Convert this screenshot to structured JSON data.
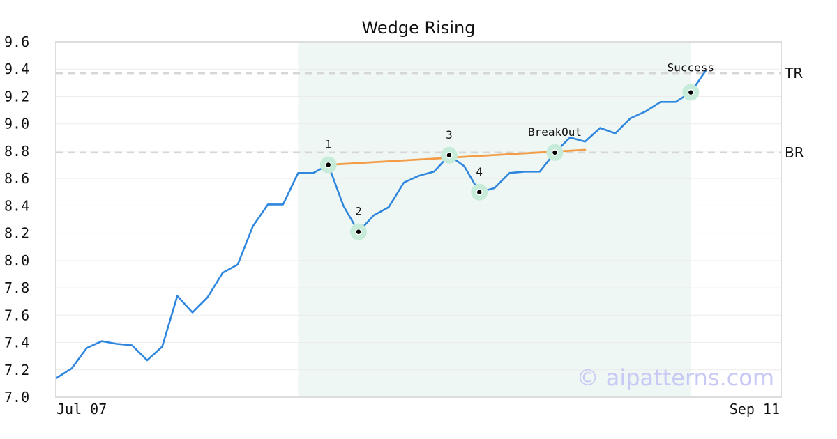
{
  "chart_data": {
    "type": "line",
    "title": "Wedge Rising",
    "xlabel": "",
    "ylabel": "",
    "x_tick_labels": [
      "Jul 07",
      "Sep 11"
    ],
    "y_ticks": [
      "7.0",
      "7.2",
      "7.4",
      "7.6",
      "7.8",
      "8.0",
      "8.2",
      "8.4",
      "8.6",
      "8.8",
      "9.0",
      "9.2",
      "9.4",
      "9.6"
    ],
    "ylim": [
      7.0,
      9.6
    ],
    "grid": true,
    "series": [
      {
        "color": "#2e86de",
        "values": [
          7.14,
          7.21,
          7.36,
          7.41,
          7.39,
          7.38,
          7.27,
          7.37,
          7.74,
          7.62,
          7.73,
          7.91,
          7.97,
          8.25,
          8.41,
          8.41,
          8.64,
          8.64,
          8.7,
          8.4,
          8.21,
          8.33,
          8.39,
          8.57,
          8.62,
          8.65,
          8.77,
          8.69,
          8.5,
          8.53,
          8.64,
          8.65,
          8.65,
          8.79,
          8.9,
          8.87,
          8.97,
          8.93,
          9.04,
          9.09,
          9.16,
          9.16,
          9.23,
          9.39
        ]
      }
    ],
    "highlight_range": {
      "start_index": 16,
      "end_index": 42,
      "color": "#eef7f3"
    },
    "trend_line": {
      "start_index": 18,
      "start_value": 8.7,
      "end_index": 35,
      "end_value": 8.81,
      "color": "#f39c45"
    },
    "reference_lines": [
      {
        "label": "TR",
        "value": 9.37
      },
      {
        "label": "BR",
        "value": 8.79
      }
    ],
    "points": [
      {
        "label": "1",
        "index": 18,
        "value": 8.7,
        "label_position": "above"
      },
      {
        "label": "2",
        "index": 20,
        "value": 8.21,
        "label_position": "above"
      },
      {
        "label": "3",
        "index": 26,
        "value": 8.77,
        "label_position": "above"
      },
      {
        "label": "4",
        "index": 28,
        "value": 8.5,
        "label_position": "above"
      },
      {
        "label": "BreakOut",
        "index": 33,
        "value": 8.79,
        "label_position": "above"
      },
      {
        "label": "Success",
        "index": 42,
        "value": 9.23,
        "label_position": "above-far"
      }
    ],
    "marker_halo_color": "#c6ecd9",
    "watermark": "© aipatterns.com"
  }
}
